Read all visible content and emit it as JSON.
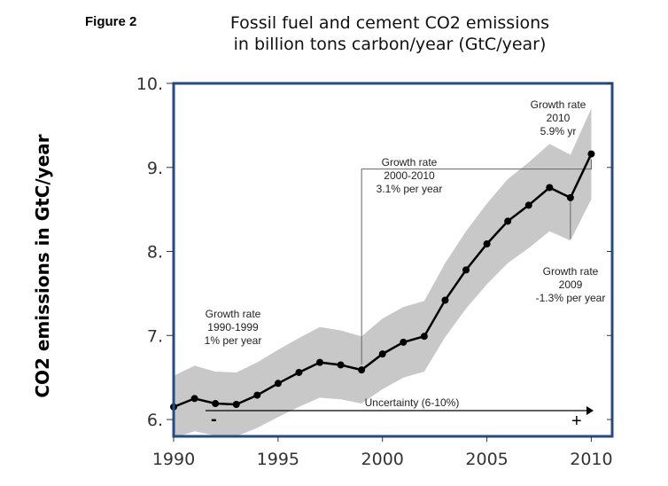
{
  "figure_label": "Figure 2",
  "title_line1": "Fossil fuel and cement CO2 emissions",
  "title_line2": "in billion tons carbon/year (GtC/year)",
  "ylabel": "CO2 emissions in GtC/year",
  "colors": {
    "frame": "#274a86",
    "band": "#c8c8c8",
    "line": "#000000",
    "annotation_line": "#666666"
  },
  "chart_data": {
    "type": "line",
    "title": "Fossil fuel and cement CO2 emissions in billion tons carbon/year (GtC/year)",
    "xlabel": "",
    "ylabel": "CO2 emissions in GtC/year",
    "xlim": [
      1990,
      2011
    ],
    "ylim": [
      5.8,
      10.0
    ],
    "x_ticks": [
      1990,
      1995,
      2000,
      2005,
      2010
    ],
    "x_tick_labels": [
      "1990",
      "1995",
      "2000",
      "2005",
      "2010"
    ],
    "y_ticks": [
      6,
      7,
      8,
      9,
      10
    ],
    "y_tick_labels": [
      "6.",
      "7.",
      "8.",
      "9.",
      "10."
    ],
    "grid": false,
    "series": [
      {
        "x": [
          1990,
          1991,
          1992,
          1993,
          1994,
          1995,
          1996,
          1997,
          1998,
          1999,
          2000,
          2001,
          2002,
          2003,
          2004,
          2005,
          2006,
          2007,
          2008,
          2009,
          2010
        ],
        "values": [
          6.15,
          6.25,
          6.19,
          6.18,
          6.29,
          6.43,
          6.56,
          6.68,
          6.65,
          6.59,
          6.78,
          6.92,
          6.99,
          7.42,
          7.78,
          8.09,
          8.36,
          8.55,
          8.76,
          8.64,
          9.16
        ],
        "uncertainty_lower": [
          5.78,
          5.86,
          5.81,
          5.8,
          5.9,
          6.03,
          6.15,
          6.26,
          6.24,
          6.19,
          6.36,
          6.5,
          6.57,
          6.98,
          7.32,
          7.61,
          7.86,
          8.04,
          8.24,
          8.13,
          8.62
        ],
        "uncertainty_upper": [
          6.52,
          6.64,
          6.57,
          6.56,
          6.68,
          6.83,
          6.97,
          7.1,
          7.06,
          6.99,
          7.2,
          7.34,
          7.41,
          7.86,
          8.24,
          8.57,
          8.86,
          9.06,
          9.28,
          9.15,
          9.7
        ]
      }
    ],
    "annotations": [
      {
        "lines": [
          "Growth rate",
          "1990-1999",
          "1% per year"
        ]
      },
      {
        "lines": [
          "Growth rate",
          "2000-2010",
          "3.1% per year"
        ]
      },
      {
        "lines": [
          "Growth rate",
          "2010",
          "5.9% yr"
        ]
      },
      {
        "lines": [
          "Growth rate",
          "2009",
          "-1.3% per year"
        ]
      }
    ],
    "uncertainty_label": "Uncertainty (6-10%)",
    "minus_sign": "-",
    "plus_sign": "+"
  }
}
